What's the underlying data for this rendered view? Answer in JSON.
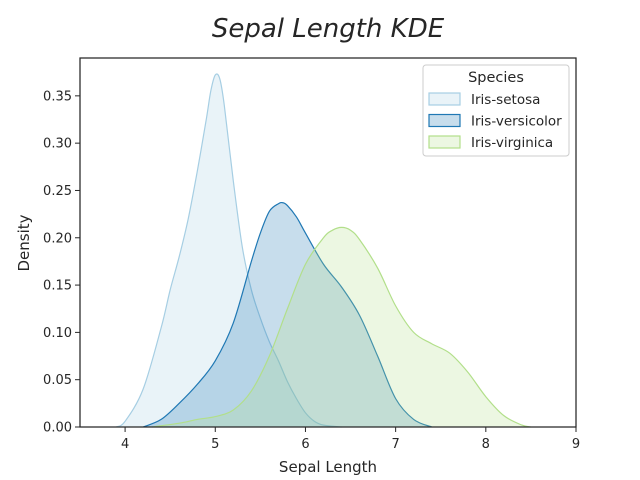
{
  "chart_data": {
    "type": "area",
    "title": "Sepal Length KDE",
    "xlabel": "Sepal Length",
    "ylabel": "Density",
    "xlim": [
      3.5,
      9.0
    ],
    "ylim": [
      0,
      0.39
    ],
    "xticks": [
      "4",
      "5",
      "6",
      "7",
      "8",
      "9"
    ],
    "yticks": [
      "0.00",
      "0.05",
      "0.10",
      "0.15",
      "0.20",
      "0.25",
      "0.30",
      "0.35"
    ],
    "grid": false,
    "legend": {
      "title": "Species",
      "position": "top-right"
    },
    "series": [
      {
        "name": "Iris-setosa",
        "stroke": "#a6cee3",
        "fill": "#a6cee3",
        "x": [
          3.9,
          4.0,
          4.2,
          4.4,
          4.5,
          4.6,
          4.7,
          4.8,
          4.9,
          4.95,
          5.0,
          5.05,
          5.1,
          5.2,
          5.3,
          5.4,
          5.5,
          5.6,
          5.7,
          5.8,
          5.9,
          6.0,
          6.1,
          6.2,
          6.4
        ],
        "y": [
          0.0,
          0.006,
          0.04,
          0.105,
          0.145,
          0.18,
          0.22,
          0.27,
          0.325,
          0.355,
          0.372,
          0.368,
          0.34,
          0.26,
          0.19,
          0.145,
          0.115,
          0.09,
          0.07,
          0.048,
          0.03,
          0.015,
          0.006,
          0.002,
          0.0
        ]
      },
      {
        "name": "Iris-versicolor",
        "stroke": "#1f78b4",
        "fill": "#1f78b4",
        "x": [
          4.2,
          4.4,
          4.6,
          4.8,
          5.0,
          5.2,
          5.4,
          5.5,
          5.6,
          5.7,
          5.75,
          5.8,
          5.9,
          6.0,
          6.2,
          6.4,
          6.6,
          6.8,
          7.0,
          7.2,
          7.4
        ],
        "y": [
          0.0,
          0.008,
          0.025,
          0.045,
          0.07,
          0.11,
          0.175,
          0.205,
          0.228,
          0.236,
          0.237,
          0.234,
          0.222,
          0.205,
          0.172,
          0.148,
          0.118,
          0.075,
          0.03,
          0.008,
          0.0
        ]
      },
      {
        "name": "Iris-virginica",
        "stroke": "#b2df8a",
        "fill": "#b2df8a",
        "x": [
          4.3,
          4.6,
          4.8,
          5.0,
          5.2,
          5.4,
          5.6,
          5.8,
          6.0,
          6.2,
          6.3,
          6.4,
          6.5,
          6.6,
          6.8,
          7.0,
          7.2,
          7.4,
          7.6,
          7.8,
          8.0,
          8.2,
          8.4,
          8.5
        ],
        "y": [
          0.0,
          0.004,
          0.008,
          0.011,
          0.018,
          0.038,
          0.075,
          0.125,
          0.172,
          0.2,
          0.208,
          0.211,
          0.208,
          0.198,
          0.168,
          0.128,
          0.1,
          0.088,
          0.078,
          0.058,
          0.032,
          0.012,
          0.002,
          0.0
        ]
      }
    ]
  }
}
